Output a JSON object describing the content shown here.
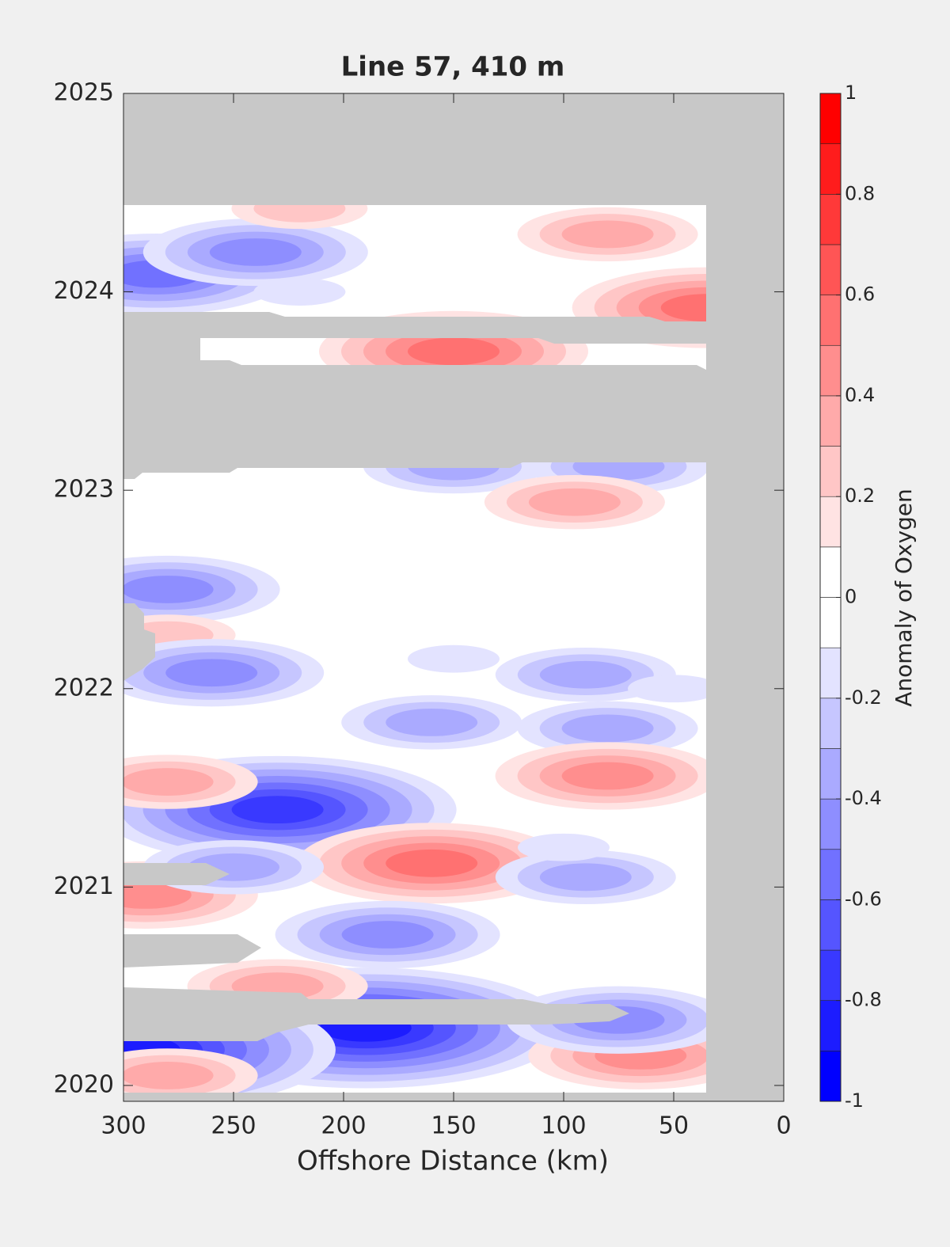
{
  "chart_data": {
    "type": "contour",
    "title": "Line 57, 410 m",
    "xlabel": "Offshore Distance (km)",
    "colorbar_label": "Anomaly of Oxygen",
    "xlim": [
      300,
      0
    ],
    "xticks": [
      300,
      250,
      200,
      150,
      100,
      50,
      0
    ],
    "ylim": [
      2019.92,
      2025
    ],
    "yticks": [
      2020,
      2021,
      2022,
      2023,
      2024,
      2025
    ],
    "clim": [
      -1,
      1
    ],
    "levels": [
      -1,
      -0.9,
      -0.8,
      -0.7,
      -0.6,
      -0.5,
      -0.4,
      -0.3,
      -0.2,
      -0.1,
      0,
      0.1,
      0.2,
      0.3,
      0.4,
      0.5,
      0.6,
      0.7,
      0.8,
      0.9,
      1
    ],
    "cticks": [
      -1,
      -0.8,
      -0.6,
      -0.4,
      -0.2,
      0,
      0.2,
      0.4,
      0.6,
      0.8,
      1
    ],
    "points": {
      "x": [
        285,
        240,
        150,
        35,
        220,
        80,
        150,
        75,
        95,
        280,
        280,
        260,
        90,
        80,
        160,
        230,
        80,
        280,
        160,
        290,
        180,
        190,
        65,
        295,
        280,
        230,
        75,
        90,
        250,
        150,
        50,
        100,
        220
      ],
      "y": [
        2024.09,
        2024.2,
        2023.7,
        2023.92,
        2024.42,
        2024.29,
        2023.12,
        2023.12,
        2022.94,
        2022.5,
        2022.27,
        2022.08,
        2022.07,
        2021.8,
        2021.83,
        2021.39,
        2021.56,
        2021.53,
        2021.12,
        2020.96,
        2020.76,
        2020.29,
        2020.15,
        2020.18,
        2020.05,
        2020.5,
        2020.33,
        2021.05,
        2021.1,
        2022.15,
        2022.0,
        2021.2,
        2024.0
      ],
      "values": [
        -0.5,
        -0.4,
        0.5,
        0.5,
        0.2,
        0.3,
        -0.3,
        -0.3,
        0.3,
        -0.4,
        0.2,
        -0.4,
        -0.3,
        -0.3,
        -0.3,
        -0.7,
        0.4,
        0.3,
        0.5,
        0.4,
        -0.4,
        -0.8,
        0.4,
        -0.8,
        0.3,
        0.3,
        -0.4,
        -0.3,
        -0.3,
        -0.15,
        -0.15,
        -0.15,
        -0.15
      ]
    }
  }
}
